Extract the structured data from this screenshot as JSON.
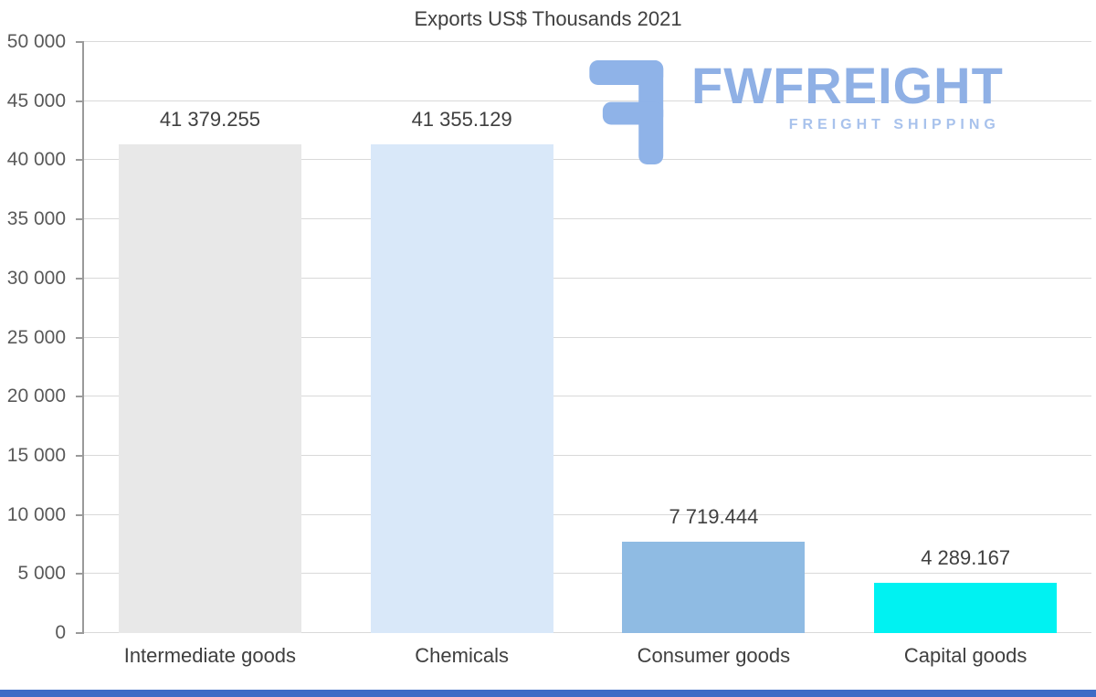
{
  "logo": {
    "brand": "FWFREIGHT",
    "tagline": "FREIGHT SHIPPING",
    "brand_color": "#8fb0e5",
    "tagline_color": "#a8c2ec",
    "icon": "fwfreight-f-glyph"
  },
  "footer": {
    "accent_color": "#3d6bc6"
  },
  "chart_data": {
    "type": "bar",
    "title": "Exports US$ Thousands 2021",
    "categories": [
      "Intermediate goods",
      "Chemicals",
      "Consumer goods",
      "Capital goods"
    ],
    "values": [
      41379.255,
      41355.129,
      7719.444,
      4289.167
    ],
    "value_labels": [
      "41 379.255",
      "41 355.129",
      "7 719.444",
      "4 289.167"
    ],
    "bar_colors": [
      "#e8e8e8",
      "#d9e8f9",
      "#8fbbe3",
      "#00f2f2"
    ],
    "xlabel": "",
    "ylabel": "",
    "ylim": [
      0,
      50000
    ],
    "ytick_step": 5000,
    "ytick_labels": [
      "0",
      "5 000",
      "10 000",
      "15 000",
      "20 000",
      "25 000",
      "30 000",
      "35 000",
      "40 000",
      "45 000",
      "50 000"
    ],
    "grid": true,
    "legend": false
  }
}
